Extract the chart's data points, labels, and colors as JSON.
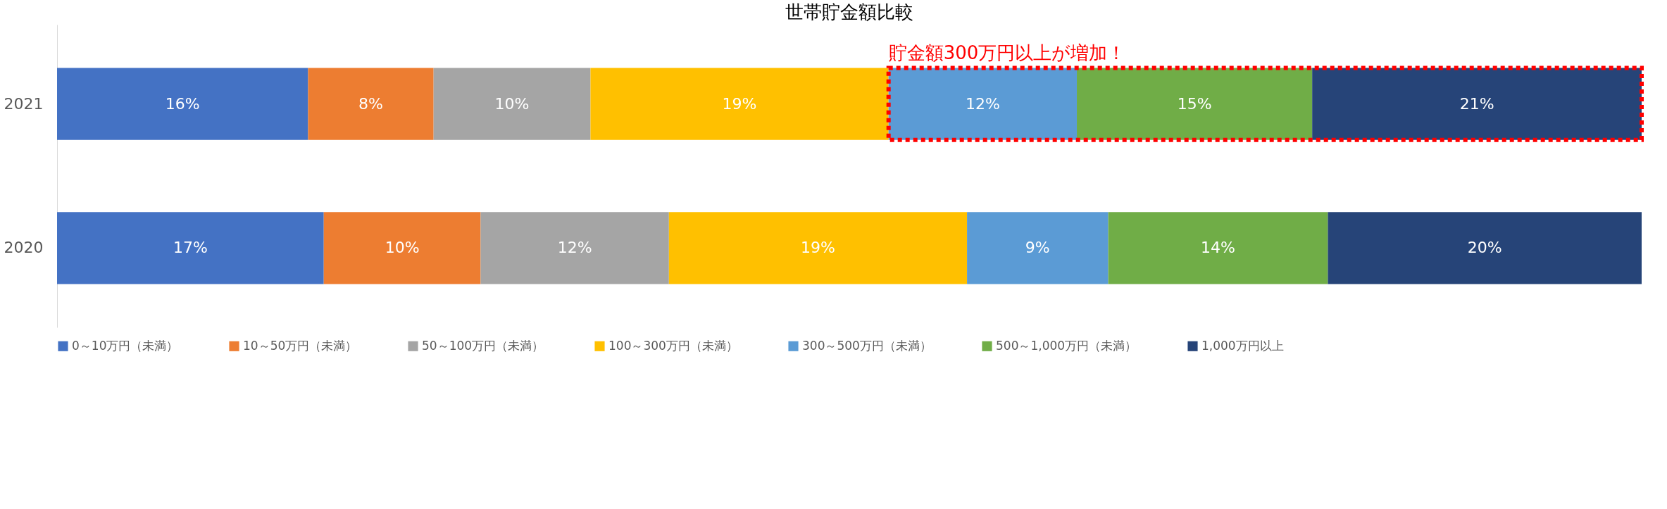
{
  "chart_data": {
    "type": "bar",
    "orientation": "horizontal",
    "stacked": true,
    "title": "世帯貯金額比較",
    "categories": [
      "2021",
      "2020"
    ],
    "xlim": [
      0,
      101
    ],
    "tick_labels": "y",
    "legend": "bottom",
    "grid": false,
    "series": [
      {
        "name": "0～10万円（未満）",
        "color": "#4472c4",
        "values": [
          16,
          17
        ],
        "value_labels": [
          "16%",
          "17%"
        ]
      },
      {
        "name": "10～50万円（未満）",
        "color": "#ed7d31",
        "values": [
          8,
          10
        ],
        "value_labels": [
          "8%",
          "10%"
        ]
      },
      {
        "name": "50～100万円（未満）",
        "color": "#a5a5a5",
        "values": [
          10,
          12
        ],
        "value_labels": [
          "10%",
          "12%"
        ]
      },
      {
        "name": "100～300万円（未満）",
        "color": "#ffc000",
        "values": [
          19,
          19
        ],
        "value_labels": [
          "19%",
          "19%"
        ]
      },
      {
        "name": "300～500万円（未満）",
        "color": "#5b9bd5",
        "values": [
          12,
          9
        ],
        "value_labels": [
          "12%",
          "9%"
        ]
      },
      {
        "name": "500～1,000万円（未満）",
        "color": "#70ad47",
        "values": [
          15,
          14
        ],
        "value_labels": [
          "15%",
          "14%"
        ]
      },
      {
        "name": "1,000万円以上",
        "color": "#264478",
        "values": [
          21,
          20
        ],
        "value_labels": [
          "21%",
          "20%"
        ]
      }
    ],
    "annotations": [
      {
        "text": "貯金額300万円以上が増加！",
        "x": 53,
        "y": "2021"
      }
    ]
  }
}
